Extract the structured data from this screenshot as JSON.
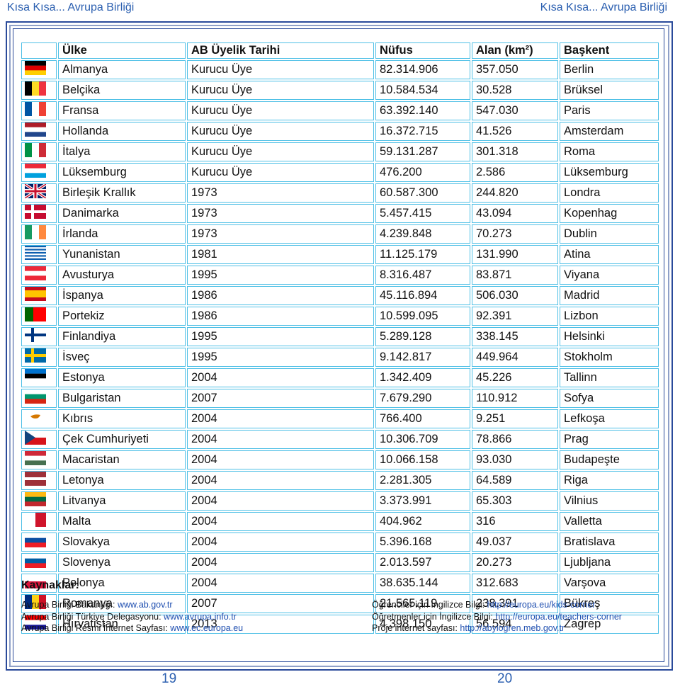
{
  "header": {
    "left": "Kısa Kısa... Avrupa Birliği",
    "right": "Kısa Kısa... Avrupa Birliği"
  },
  "table": {
    "columns": [
      "Ülke",
      "AB Üyelik Tarihi",
      "Nüfus",
      "Alan (km²)",
      "Başkent"
    ],
    "rows": [
      [
        "Almanya",
        "Kurucu Üye",
        "82.314.906",
        "357.050",
        "Berlin"
      ],
      [
        "Belçika",
        "Kurucu Üye",
        "10.584.534",
        "30.528",
        "Brüksel"
      ],
      [
        "Fransa",
        "Kurucu Üye",
        "63.392.140",
        "547.030",
        "Paris"
      ],
      [
        "Hollanda",
        "Kurucu Üye",
        "16.372.715",
        "41.526",
        "Amsterdam"
      ],
      [
        "İtalya",
        "Kurucu Üye",
        "59.131.287",
        "301.318",
        "Roma"
      ],
      [
        "Lüksemburg",
        "Kurucu Üye",
        "476.200",
        "2.586",
        "Lüksemburg"
      ],
      [
        "Birleşik Krallık",
        "1973",
        "60.587.300",
        "244.820",
        "Londra"
      ],
      [
        "Danimarka",
        "1973",
        "5.457.415",
        "43.094",
        "Kopenhag"
      ],
      [
        "İrlanda",
        "1973",
        "4.239.848",
        "70.273",
        "Dublin"
      ],
      [
        "Yunanistan",
        "1981",
        "11.125.179",
        "131.990",
        "Atina"
      ],
      [
        "Avusturya",
        "1995",
        "8.316.487",
        "83.871",
        "Viyana"
      ],
      [
        "İspanya",
        "1986",
        "45.116.894",
        "506.030",
        "Madrid"
      ],
      [
        "Portekiz",
        "1986",
        "10.599.095",
        "92.391",
        "Lizbon"
      ],
      [
        "Finlandiya",
        "1995",
        "5.289.128",
        "338.145",
        "Helsinki"
      ],
      [
        "İsveç",
        "1995",
        "9.142.817",
        "449.964",
        "Stokholm"
      ],
      [
        "Estonya",
        "2004",
        "1.342.409",
        "45.226",
        "Tallinn"
      ],
      [
        "Bulgaristan",
        "2007",
        "7.679.290",
        "110.912",
        "Sofya"
      ],
      [
        "Kıbrıs",
        "2004",
        "766.400",
        "9.251",
        "Lefkoşa"
      ],
      [
        "Çek Cumhuriyeti",
        "2004",
        "10.306.709",
        "78.866",
        "Prag"
      ],
      [
        "Macaristan",
        "2004",
        "10.066.158",
        "93.030",
        "Budapeşte"
      ],
      [
        "Letonya",
        "2004",
        "2.281.305",
        "64.589",
        "Riga"
      ],
      [
        "Litvanya",
        "2004",
        "3.373.991",
        "65.303",
        "Vilnius"
      ],
      [
        "Malta",
        "2004",
        "404.962",
        "316",
        "Valletta"
      ],
      [
        "Slovakya",
        "2004",
        "5.396.168",
        "49.037",
        "Bratislava"
      ],
      [
        "Slovenya",
        "2004",
        "2.013.597",
        "20.273",
        "Ljubljana"
      ],
      [
        "Polonya",
        "2004",
        "38.635.144",
        "312.683",
        "Varşova"
      ],
      [
        "Romanya",
        "2007",
        "21.565.119",
        "238.391",
        "Bükreş"
      ],
      [
        "Hırvatistan",
        "2013",
        "4.398.150",
        "56.594",
        "Zagrep"
      ]
    ]
  },
  "sources": {
    "title": "Kaynaklar:",
    "left": [
      {
        "label": "Avrupa Birliği Bakanlığı:",
        "link": "www.ab.gov.tr"
      },
      {
        "label": "Avrupa Birliği Türkiye Delegasyonu:",
        "link": "www.avrupa.info.tr"
      },
      {
        "label": "Avrupa Birliği Resmi İnternet Sayfası:",
        "link": "www.ec.europa.eu"
      }
    ],
    "right": [
      {
        "label": "Öğrenciler için İngilizce Bilgi:",
        "link": "http://europa.eu/kids-corner"
      },
      {
        "label": "Öğretmenler için İngilizce Bilgi:",
        "link": "http://europa.eu/teachers-corner"
      },
      {
        "label": "Proje internet sayfası:",
        "link": "http://abyiogren.meb.gov.tr"
      }
    ]
  },
  "pages": {
    "left": "19",
    "right": "20"
  }
}
